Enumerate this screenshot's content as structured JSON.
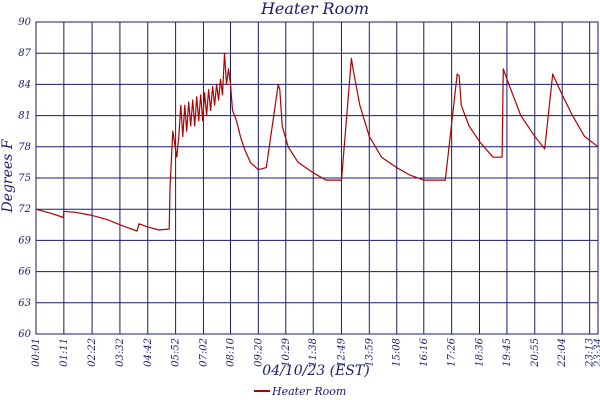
{
  "chart_data": {
    "type": "line",
    "title": "Heater Room",
    "xlabel": "04/10/23 (EST)",
    "ylabel": "Degrees F",
    "ylim": [
      60,
      90
    ],
    "yticks": [
      60,
      63,
      66,
      69,
      72,
      75,
      78,
      81,
      84,
      87,
      90
    ],
    "xlim": [
      "00:01",
      "23:34"
    ],
    "xticks": [
      "00:01",
      "01:11",
      "02:22",
      "03:32",
      "04:42",
      "05:52",
      "07:02",
      "08:10",
      "09:20",
      "10:29",
      "11:38",
      "12:49",
      "13:59",
      "15:08",
      "16:16",
      "17:26",
      "18:36",
      "19:45",
      "20:55",
      "22:04",
      "23:13",
      "23:34"
    ],
    "grid": true,
    "legend": "bottom",
    "series": [
      {
        "name": "Heater Room",
        "color": "#b00000",
        "x": [
          "00:01",
          "00:40",
          "01:10",
          "01:11",
          "01:40",
          "02:22",
          "03:00",
          "03:32",
          "04:15",
          "04:20",
          "04:42",
          "05:10",
          "05:36",
          "05:38",
          "05:45",
          "05:55",
          "06:00",
          "06:05",
          "06:10",
          "06:15",
          "06:20",
          "06:25",
          "06:30",
          "06:35",
          "06:40",
          "06:45",
          "06:50",
          "06:55",
          "07:00",
          "07:05",
          "07:10",
          "07:15",
          "07:20",
          "07:25",
          "07:30",
          "07:35",
          "07:40",
          "07:45",
          "07:50",
          "07:55",
          "08:00",
          "08:05",
          "08:10",
          "08:15",
          "08:25",
          "08:35",
          "08:45",
          "09:00",
          "09:20",
          "09:40",
          "10:10",
          "10:14",
          "10:20",
          "10:35",
          "11:00",
          "11:38",
          "12:10",
          "12:49",
          "13:14",
          "13:18",
          "13:35",
          "13:59",
          "14:30",
          "15:08",
          "15:40",
          "16:16",
          "16:50",
          "17:10",
          "17:40",
          "17:45",
          "17:50",
          "18:10",
          "18:36",
          "19:10",
          "19:33",
          "19:36",
          "19:50",
          "20:20",
          "20:55",
          "21:20",
          "21:40",
          "21:46",
          "22:04",
          "22:30",
          "23:00",
          "23:34"
        ],
        "y": [
          72.0,
          71.6,
          71.2,
          71.8,
          71.7,
          71.4,
          71.0,
          70.5,
          69.9,
          70.6,
          70.3,
          70.0,
          70.1,
          74.0,
          79.5,
          77.0,
          79.0,
          82.0,
          79.0,
          82.0,
          79.5,
          82.3,
          80.0,
          82.5,
          80.0,
          82.8,
          80.5,
          83.0,
          80.5,
          83.2,
          81.0,
          83.5,
          81.5,
          83.8,
          82.0,
          84.0,
          82.5,
          84.5,
          83.0,
          87.0,
          84.0,
          85.5,
          84.0,
          81.5,
          80.5,
          79.0,
          77.8,
          76.5,
          75.8,
          76.0,
          84.0,
          83.5,
          80.0,
          78.0,
          76.5,
          75.5,
          74.8,
          74.8,
          86.5,
          85.5,
          82.0,
          79.0,
          77.0,
          76.0,
          75.3,
          74.8,
          74.8,
          74.8,
          85.0,
          84.8,
          82.0,
          80.0,
          78.5,
          77.0,
          77.0,
          85.5,
          84.0,
          81.0,
          79.0,
          77.8,
          85.0,
          84.5,
          83.0,
          81.0,
          79.0,
          78.0
        ]
      }
    ]
  }
}
